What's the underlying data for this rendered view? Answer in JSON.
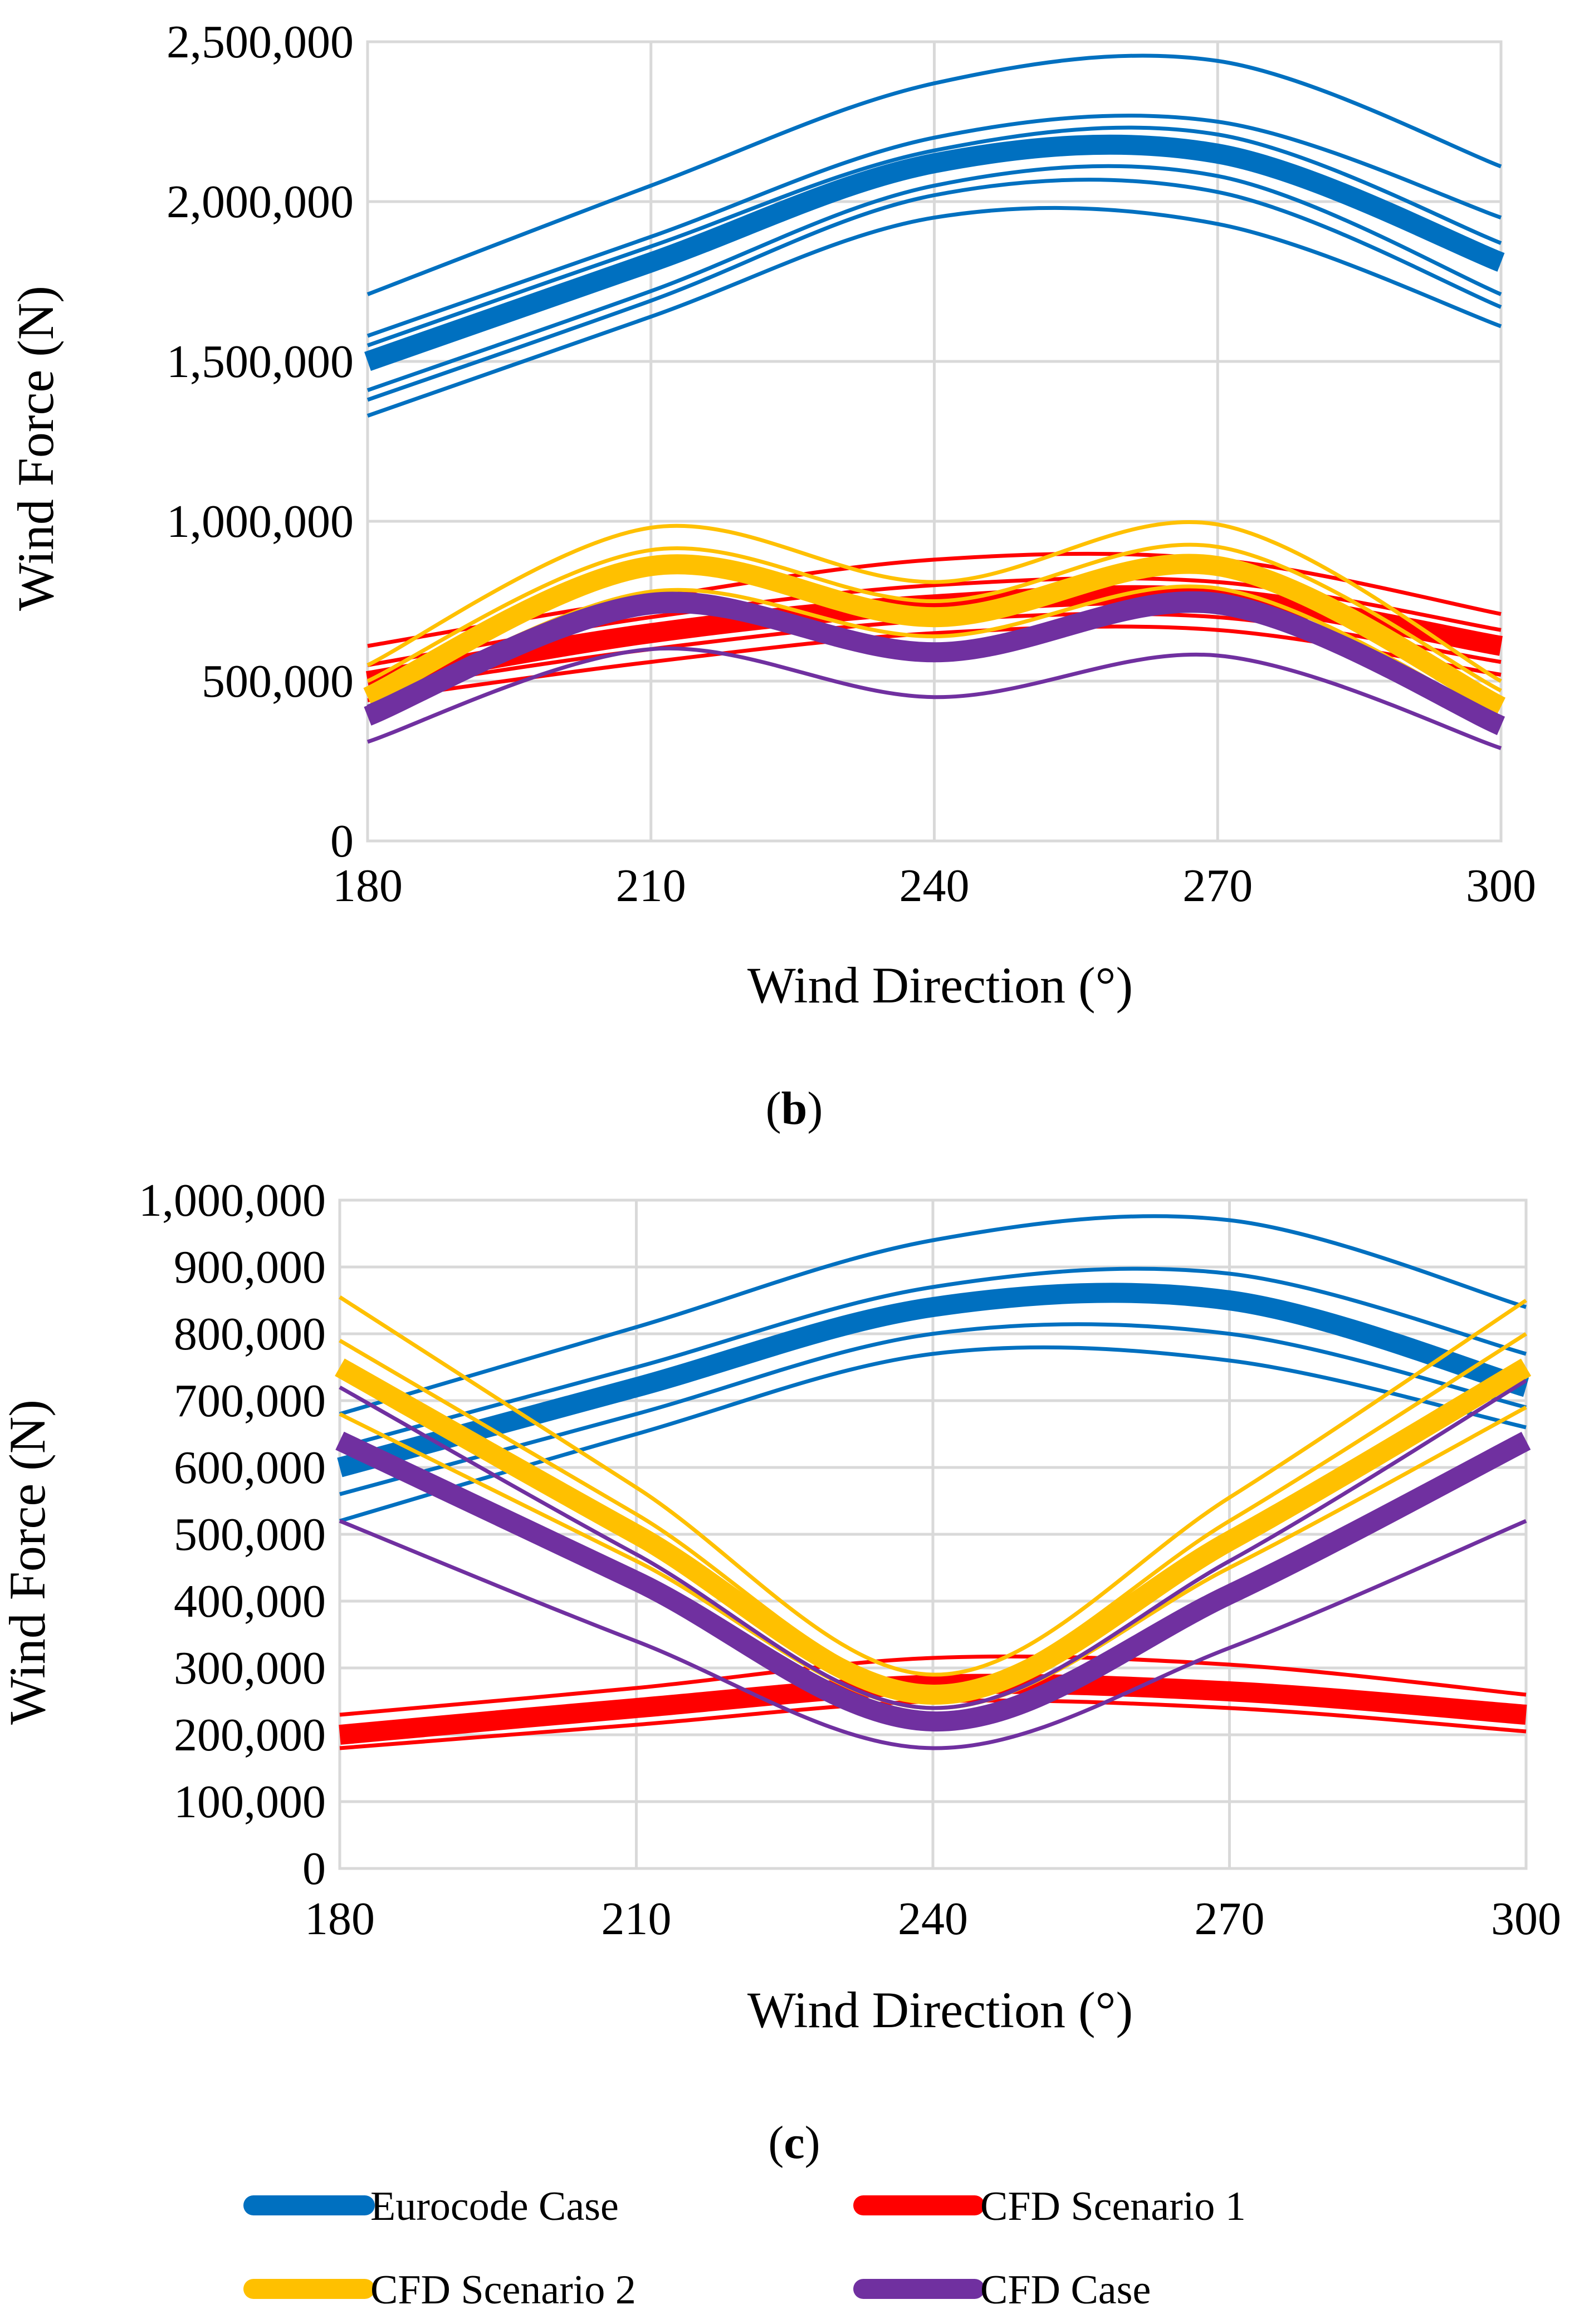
{
  "chart_data": [
    {
      "panel": "b",
      "type": "line",
      "xlabel": "Wind Direction (°)",
      "ylabel": "Wind Force (N)",
      "xlim": [
        180,
        300
      ],
      "ylim": [
        0,
        2500000
      ],
      "x_ticks": [
        180,
        210,
        240,
        270,
        300
      ],
      "y_ticks": [
        0,
        500000,
        1000000,
        1500000,
        2000000,
        2500000
      ],
      "y_tick_labels": [
        "0",
        "500,000",
        "1,000,000",
        "1,500,000",
        "2,000,000",
        "2,500,000"
      ],
      "grid": true,
      "x": [
        180,
        210,
        240,
        270,
        300
      ],
      "series": [
        {
          "name": "Eurocode Case",
          "color": "#0070C0",
          "highlight": true,
          "values": [
            1500000,
            1810000,
            2120000,
            2150000,
            1810000
          ]
        },
        {
          "name": "Eurocode Case",
          "color": "#0070C0",
          "values": [
            1710000,
            2050000,
            2370000,
            2440000,
            2110000
          ]
        },
        {
          "name": "Eurocode Case",
          "color": "#0070C0",
          "values": [
            1580000,
            1890000,
            2200000,
            2250000,
            1950000
          ]
        },
        {
          "name": "Eurocode Case",
          "color": "#0070C0",
          "values": [
            1550000,
            1860000,
            2160000,
            2210000,
            1870000
          ]
        },
        {
          "name": "Eurocode Case",
          "color": "#0070C0",
          "values": [
            1410000,
            1720000,
            2050000,
            2080000,
            1710000
          ]
        },
        {
          "name": "Eurocode Case",
          "color": "#0070C0",
          "values": [
            1380000,
            1690000,
            2020000,
            2030000,
            1670000
          ]
        },
        {
          "name": "Eurocode Case",
          "color": "#0070C0",
          "values": [
            1330000,
            1640000,
            1950000,
            1930000,
            1610000
          ]
        },
        {
          "name": "CFD Scenario 1",
          "color": "#FF0000",
          "highlight": true,
          "values": [
            500000,
            650000,
            740000,
            760000,
            610000
          ]
        },
        {
          "name": "CFD Scenario 1",
          "color": "#FF0000",
          "values": [
            610000,
            760000,
            880000,
            880000,
            710000
          ]
        },
        {
          "name": "CFD Scenario 1",
          "color": "#FF0000",
          "values": [
            550000,
            700000,
            800000,
            810000,
            660000
          ]
        },
        {
          "name": "CFD Scenario 1",
          "color": "#FF0000",
          "values": [
            470000,
            600000,
            690000,
            700000,
            560000
          ]
        },
        {
          "name": "CFD Scenario 1",
          "color": "#FF0000",
          "values": [
            440000,
            560000,
            650000,
            660000,
            520000
          ]
        },
        {
          "name": "CFD Scenario 2",
          "color": "#FFC000",
          "highlight": true,
          "values": [
            450000,
            860000,
            700000,
            860000,
            420000
          ]
        },
        {
          "name": "CFD Scenario 2",
          "color": "#FFC000",
          "values": [
            550000,
            980000,
            810000,
            990000,
            500000
          ]
        },
        {
          "name": "CFD Scenario 2",
          "color": "#FFC000",
          "values": [
            500000,
            910000,
            750000,
            920000,
            470000
          ]
        },
        {
          "name": "CFD Scenario 2",
          "color": "#FFC000",
          "values": [
            410000,
            780000,
            640000,
            790000,
            380000
          ]
        },
        {
          "name": "CFD Case",
          "color": "#7030A0",
          "highlight": true,
          "values": [
            390000,
            740000,
            590000,
            740000,
            360000
          ]
        },
        {
          "name": "CFD Case",
          "color": "#7030A0",
          "values": [
            310000,
            600000,
            450000,
            580000,
            290000
          ]
        },
        {
          "name": "CFD Case",
          "color": "#7030A0",
          "values": [
            420000,
            770000,
            610000,
            770000,
            380000
          ]
        }
      ]
    },
    {
      "panel": "c",
      "type": "line",
      "xlabel": "Wind Direction (°)",
      "ylabel": "Wind Force (N)",
      "xlim": [
        180,
        300
      ],
      "ylim": [
        0,
        1000000
      ],
      "x_ticks": [
        180,
        210,
        240,
        270,
        300
      ],
      "y_ticks": [
        0,
        100000,
        200000,
        300000,
        400000,
        500000,
        600000,
        700000,
        800000,
        900000,
        1000000
      ],
      "y_tick_labels": [
        "0",
        "100,000",
        "200,000",
        "300,000",
        "400,000",
        "500,000",
        "600,000",
        "700,000",
        "800,000",
        "900,000",
        "1,000,000"
      ],
      "grid": true,
      "x": [
        180,
        210,
        240,
        270,
        300
      ],
      "series": [
        {
          "name": "Eurocode Case",
          "color": "#0070C0",
          "highlight": true,
          "values": [
            600000,
            720000,
            840000,
            850000,
            720000
          ]
        },
        {
          "name": "Eurocode Case",
          "color": "#0070C0",
          "values": [
            680000,
            810000,
            940000,
            970000,
            840000
          ]
        },
        {
          "name": "Eurocode Case",
          "color": "#0070C0",
          "values": [
            630000,
            750000,
            870000,
            890000,
            770000
          ]
        },
        {
          "name": "Eurocode Case",
          "color": "#0070C0",
          "values": [
            560000,
            680000,
            800000,
            800000,
            690000
          ]
        },
        {
          "name": "Eurocode Case",
          "color": "#0070C0",
          "values": [
            520000,
            650000,
            770000,
            760000,
            660000
          ]
        },
        {
          "name": "CFD Scenario 1",
          "color": "#FF0000",
          "highlight": true,
          "values": [
            200000,
            240000,
            275000,
            265000,
            230000
          ]
        },
        {
          "name": "CFD Scenario 1",
          "color": "#FF0000",
          "values": [
            230000,
            270000,
            315000,
            305000,
            260000
          ]
        },
        {
          "name": "CFD Scenario 1",
          "color": "#FF0000",
          "values": [
            180000,
            215000,
            250000,
            240000,
            205000
          ]
        },
        {
          "name": "CFD Scenario 2",
          "color": "#FFC000",
          "highlight": true,
          "values": [
            750000,
            500000,
            260000,
            490000,
            750000
          ]
        },
        {
          "name": "CFD Scenario 2",
          "color": "#FFC000",
          "values": [
            855000,
            570000,
            290000,
            555000,
            850000
          ]
        },
        {
          "name": "CFD Scenario 2",
          "color": "#FFC000",
          "values": [
            790000,
            530000,
            270000,
            520000,
            800000
          ]
        },
        {
          "name": "CFD Scenario 2",
          "color": "#FFC000",
          "values": [
            680000,
            460000,
            240000,
            450000,
            690000
          ]
        },
        {
          "name": "CFD Case",
          "color": "#7030A0",
          "highlight": true,
          "values": [
            640000,
            430000,
            220000,
            410000,
            640000
          ]
        },
        {
          "name": "CFD Case",
          "color": "#7030A0",
          "values": [
            520000,
            340000,
            180000,
            330000,
            520000
          ]
        },
        {
          "name": "CFD Case",
          "color": "#7030A0",
          "values": [
            720000,
            470000,
            240000,
            460000,
            730000
          ]
        }
      ]
    }
  ],
  "captions": {
    "b": {
      "open": "(",
      "letter": "b",
      "close": ")"
    },
    "c": {
      "open": "(",
      "letter": "c",
      "close": ")"
    }
  },
  "legend": [
    {
      "label": "Eurocode Case",
      "color": "#0070C0"
    },
    {
      "label": "CFD Scenario 1",
      "color": "#FF0000"
    },
    {
      "label": "CFD Scenario 2",
      "color": "#FFC000"
    },
    {
      "label": "CFD Case",
      "color": "#7030A0"
    }
  ]
}
